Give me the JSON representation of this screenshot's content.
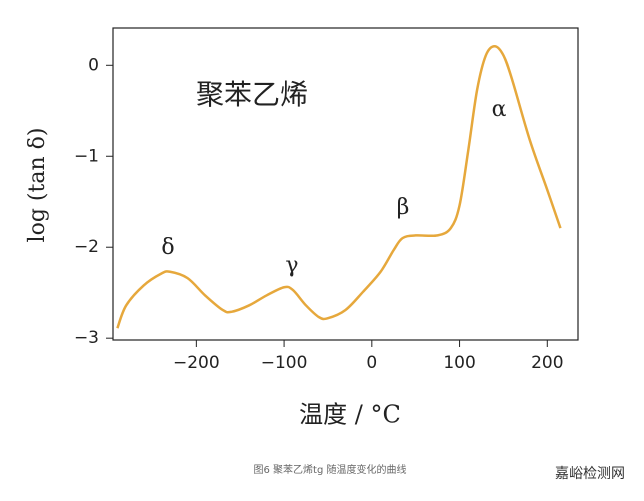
{
  "chart_data": {
    "type": "line",
    "title": "聚苯乙烯",
    "x_label": "温度 / °C",
    "y_label": "log (tan δ)",
    "caption": "图6 聚苯乙烯tg 随温度变化的曲线",
    "watermark": "嘉峪检测网",
    "annotations": [
      "δ",
      "γ",
      "β",
      "α"
    ],
    "x": [
      -290,
      -280,
      -260,
      -240,
      -230,
      -210,
      -190,
      -170,
      -160,
      -140,
      -120,
      -100,
      -90,
      -75,
      -60,
      -50,
      -30,
      -10,
      10,
      25,
      35,
      50,
      75,
      90,
      100,
      110,
      120,
      130,
      140,
      150,
      160,
      180,
      200,
      215
    ],
    "series": [
      {
        "color": "#e6a83c",
        "values": [
          -2.89,
          -2.64,
          -2.42,
          -2.29,
          -2.27,
          -2.34,
          -2.53,
          -2.69,
          -2.71,
          -2.64,
          -2.53,
          -2.44,
          -2.47,
          -2.64,
          -2.77,
          -2.78,
          -2.69,
          -2.49,
          -2.27,
          -2.03,
          -1.9,
          -1.87,
          -1.87,
          -1.79,
          -1.54,
          -0.93,
          -0.27,
          0.11,
          0.21,
          0.11,
          -0.16,
          -0.82,
          -1.37,
          -1.79
        ]
      }
    ],
    "xlim": [
      -295,
      235
    ],
    "ylim": [
      -3.02,
      0.41
    ],
    "xticks": [
      {
        "value": -200,
        "label": "−200"
      },
      {
        "value": -100,
        "label": "−100"
      },
      0,
      100,
      200
    ],
    "yticks": [
      0,
      {
        "value": -1,
        "label": "−1"
      },
      {
        "value": -2,
        "label": "−2"
      },
      {
        "value": -3,
        "label": "−3"
      }
    ]
  }
}
